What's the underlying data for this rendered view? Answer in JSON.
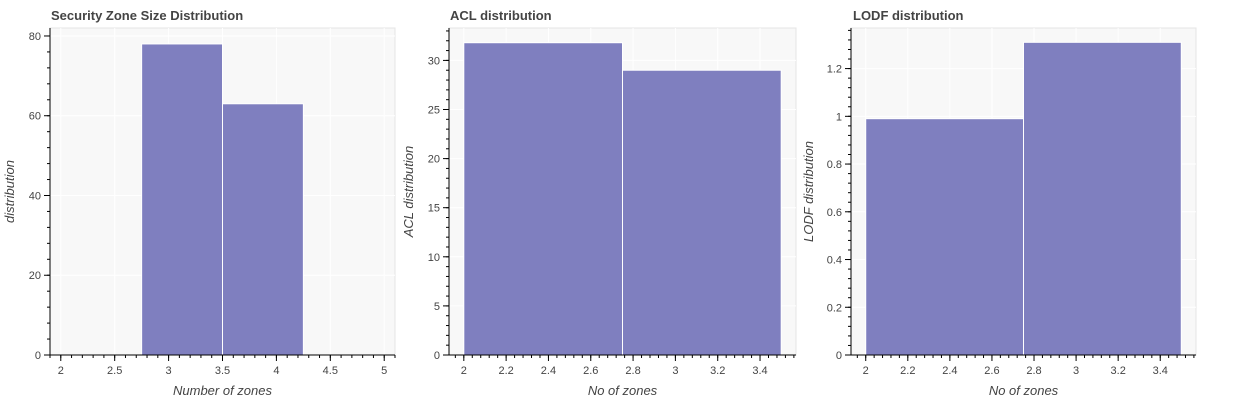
{
  "charts": {
    "bar_color": "#7f7fbf",
    "bar_edge_color": "#ffffff",
    "frame_color": "#e5e5e5"
  },
  "chart_data": [
    {
      "type": "bar",
      "title": "Security Zone Size Distribution",
      "xlabel": "Number of zones",
      "ylabel": "distribution",
      "bins": [
        [
          2.75,
          3.5
        ],
        [
          3.5,
          4.25
        ]
      ],
      "values": [
        78,
        63
      ],
      "xlim": [
        1.9,
        5.1
      ],
      "ylim": [
        0,
        82
      ],
      "xticks": [
        2,
        2.5,
        3,
        3.5,
        4,
        4.5,
        5
      ],
      "xtick_labels": [
        "2",
        "2.5",
        "3",
        "3.5",
        "4",
        "4.5",
        "5"
      ],
      "yticks": [
        0,
        20,
        40,
        60,
        80
      ],
      "ytick_labels": [
        "0",
        "20",
        "40",
        "60",
        "80"
      ],
      "grid": true,
      "legend": "none"
    },
    {
      "type": "bar",
      "title": "ACL distribution",
      "xlabel": "No of zones",
      "ylabel": "ACL distribution",
      "bins": [
        [
          2.0,
          2.75
        ],
        [
          2.75,
          3.5
        ]
      ],
      "values": [
        31.8,
        29
      ],
      "xlim": [
        1.93,
        3.57
      ],
      "ylim": [
        0,
        33.3
      ],
      "xticks": [
        2,
        2.2,
        2.4,
        2.6,
        2.8,
        3,
        3.2,
        3.4
      ],
      "xtick_labels": [
        "2",
        "2.2",
        "2.4",
        "2.6",
        "2.8",
        "3",
        "3.2",
        "3.4"
      ],
      "yticks": [
        0,
        5,
        10,
        15,
        20,
        25,
        30
      ],
      "ytick_labels": [
        "0",
        "5",
        "10",
        "15",
        "20",
        "25",
        "30"
      ],
      "grid": true,
      "legend": "none"
    },
    {
      "type": "bar",
      "title": "LODF distribution",
      "xlabel": "No of zones",
      "ylabel": "LODF distribution",
      "bins": [
        [
          2.0,
          2.75
        ],
        [
          2.75,
          3.5
        ]
      ],
      "values": [
        0.99,
        1.31
      ],
      "xlim": [
        1.93,
        3.57
      ],
      "ylim": [
        0,
        1.37
      ],
      "xticks": [
        2,
        2.2,
        2.4,
        2.6,
        2.8,
        3,
        3.2,
        3.4
      ],
      "xtick_labels": [
        "2",
        "2.2",
        "2.4",
        "2.6",
        "2.8",
        "3",
        "3.2",
        "3.4"
      ],
      "yticks": [
        0,
        0.2,
        0.4,
        0.6,
        0.8,
        1,
        1.2
      ],
      "ytick_labels": [
        "0",
        "0.2",
        "0.4",
        "0.6",
        "0.8",
        "1",
        "1.2"
      ],
      "grid": true,
      "legend": "none"
    }
  ]
}
